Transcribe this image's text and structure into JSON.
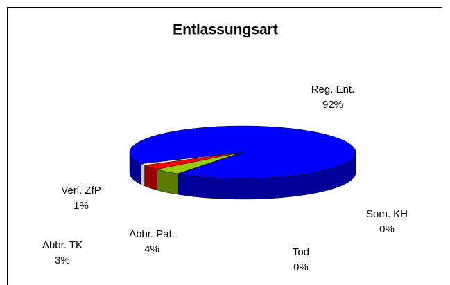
{
  "chart_data": {
    "type": "pie",
    "title": "Entlassungsart",
    "categories": [
      "Abbr. Pat.",
      "Abbr. TK",
      "Verl. ZfP",
      "Reg. Ent.",
      "Som. KH",
      "Tod"
    ],
    "values": [
      4,
      3,
      1,
      92,
      0,
      0
    ],
    "value_labels": [
      "4%",
      "3%",
      "1%",
      "92%",
      "0%",
      "0%"
    ],
    "colors": [
      "#99cc00",
      "#ff0000",
      "#ffffff",
      "#0000ff",
      "#ffff00",
      "#00ffff"
    ]
  }
}
